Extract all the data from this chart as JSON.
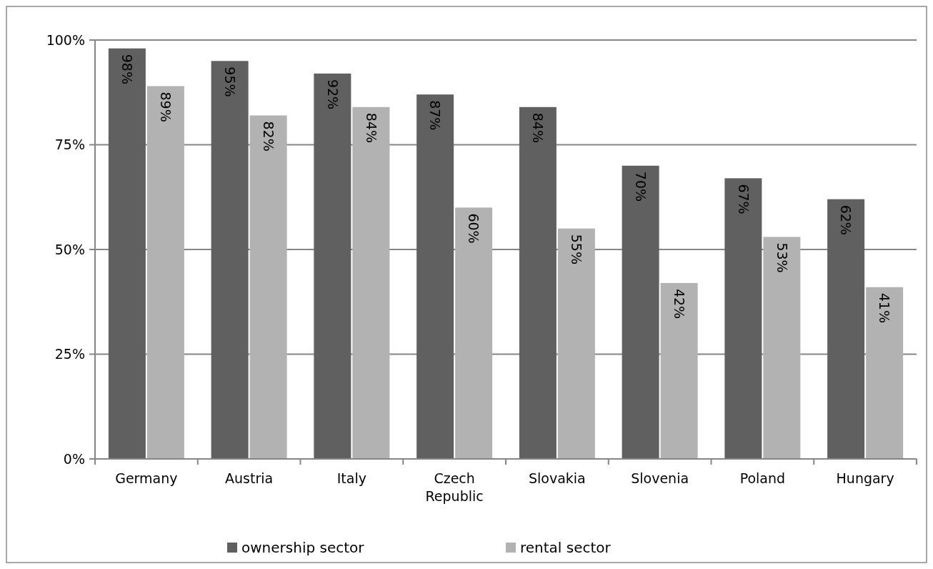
{
  "chart_data": {
    "type": "bar",
    "categories": [
      "Germany",
      "Austria",
      "Italy",
      "Czech Republic",
      "Slovakia",
      "Slovenia",
      "Poland",
      "Hungary"
    ],
    "series": [
      {
        "name": "ownership sector",
        "color": "#5f605f",
        "values": [
          98,
          95,
          92,
          87,
          84,
          70,
          67,
          62
        ],
        "value_labels": [
          "98%",
          "95%",
          "92%",
          "87%",
          "84%",
          "70%",
          "67%",
          "62%"
        ]
      },
      {
        "name": "rental sector",
        "color": "#b2b2b2",
        "values": [
          89,
          82,
          84,
          60,
          55,
          42,
          53,
          41
        ],
        "value_labels": [
          "89%",
          "82%",
          "84%",
          "60%",
          "55%",
          "42%",
          "53%",
          "41%"
        ]
      }
    ],
    "ylim": [
      0,
      100
    ],
    "yticks": [
      {
        "value": 0,
        "label": "0%"
      },
      {
        "value": 25,
        "label": "25%"
      },
      {
        "value": 50,
        "label": "50%"
      },
      {
        "value": 75,
        "label": "75%"
      },
      {
        "value": 100,
        "label": "100%"
      }
    ],
    "grid": "y",
    "legend": "bottom"
  }
}
